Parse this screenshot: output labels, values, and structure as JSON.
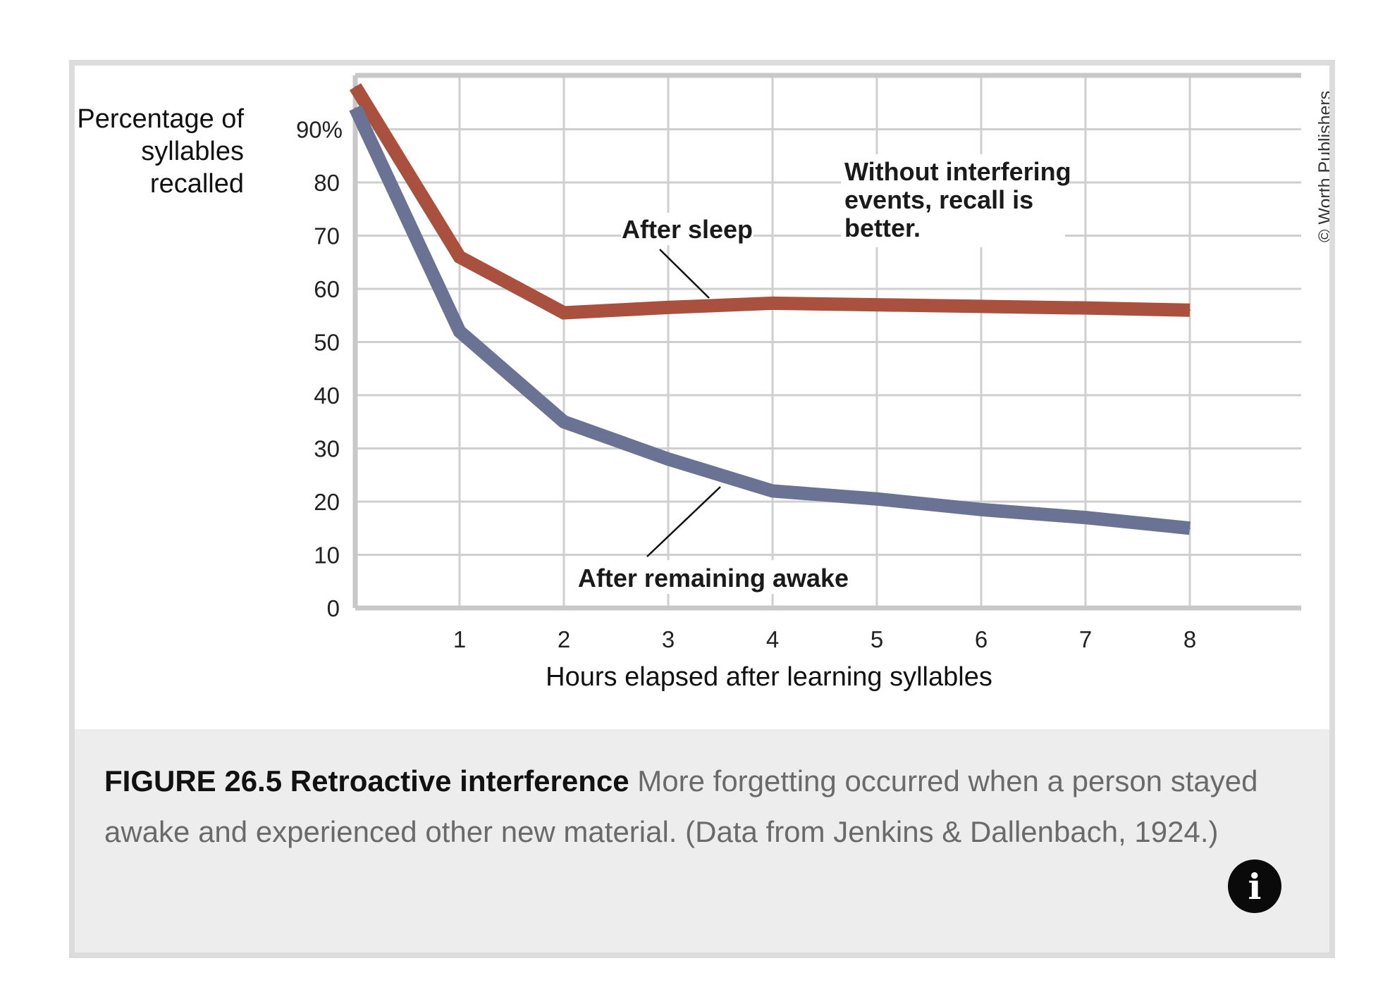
{
  "figure": {
    "caption_lead": "FIGURE 26.5 Retroactive interference",
    "caption_body": " More forgetting occurred when a person stayed awake and experienced other new material. (Data from Jenkins & Dallenbach, 1924.)",
    "copyright": "© Worth Publishers",
    "info_icon": "info-icon",
    "info_glyph": "i"
  },
  "chart_data": {
    "type": "line",
    "title": "",
    "xlabel": "Hours elapsed after learning syllables",
    "ylabel": "Percentage of syllables recalled",
    "ylabel_lines": [
      "Percentage of",
      "syllables",
      "recalled"
    ],
    "xlim": [
      0,
      9
    ],
    "ylim": [
      0,
      100
    ],
    "xticks": [
      1,
      2,
      3,
      4,
      5,
      6,
      7,
      8
    ],
    "xtick_labels": [
      "1",
      "2",
      "3",
      "4",
      "5",
      "6",
      "7",
      "8"
    ],
    "yticks": [
      0,
      10,
      20,
      30,
      40,
      50,
      60,
      70,
      80,
      90
    ],
    "ytick_labels": [
      "0",
      "10",
      "20",
      "30",
      "40",
      "50",
      "60",
      "70",
      "80",
      "90%"
    ],
    "grid": true,
    "series": [
      {
        "name": "After sleep",
        "color": "#a9513e",
        "x": [
          0,
          1,
          2,
          3,
          4,
          5,
          6,
          7,
          8
        ],
        "y": [
          98,
          66,
          55.5,
          56.5,
          57.3,
          57,
          56.7,
          56.4,
          56
        ]
      },
      {
        "name": "After remaining awake",
        "color": "#6a7393",
        "x": [
          0,
          1,
          2,
          3,
          4,
          5,
          6,
          7,
          8
        ],
        "y": [
          94,
          52,
          35,
          28,
          22,
          20.5,
          18.5,
          17,
          15
        ]
      }
    ],
    "annotations": [
      {
        "lines": [
          "After sleep"
        ],
        "series": 0
      },
      {
        "lines": [
          "Without interfering",
          "events, recall is",
          "better."
        ]
      },
      {
        "lines": [
          "After remaining awake"
        ],
        "series": 1
      }
    ]
  }
}
